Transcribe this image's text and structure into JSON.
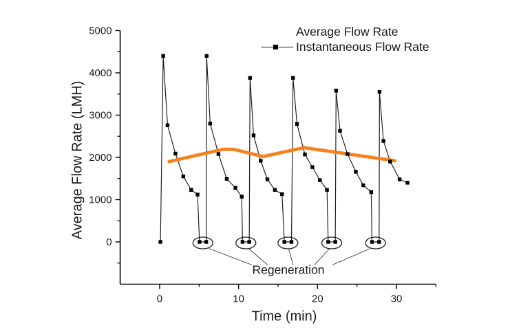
{
  "chart_data": {
    "type": "line",
    "title": "",
    "xlabel": "Time (min)",
    "ylabel": "Average Flow Rate (LMH)",
    "xlim": [
      -5,
      35
    ],
    "ylim": [
      -1000,
      5000
    ],
    "x_major_ticks": [
      0,
      10,
      20,
      30
    ],
    "x_minor_ticks": [
      5,
      15,
      25,
      35
    ],
    "y_major_ticks": [
      0,
      1000,
      2000,
      3000,
      4000,
      5000
    ],
    "y_minor_ticks": [
      -500,
      500,
      1500,
      2500,
      3500,
      4500
    ],
    "grid": false,
    "colors": {
      "average_line": "#F5821F",
      "instantaneous_line": "#1A1A1A",
      "marker": "#000000",
      "axis": "#000000"
    },
    "legend": {
      "position": "top-right-inside",
      "entries": [
        "Average Flow Rate",
        "Instantaneous Flow Rate"
      ]
    },
    "series": [
      {
        "name": "Average Flow Rate",
        "style": "thick-line",
        "color": "#F5821F",
        "points": [
          [
            1.2,
            1900
          ],
          [
            8,
            2190
          ],
          [
            9.4,
            2190
          ],
          [
            13.1,
            2020
          ],
          [
            18.3,
            2230
          ],
          [
            29.8,
            1920
          ]
        ]
      },
      {
        "name": "Instantaneous Flow Rate",
        "style": "line-with-square-markers",
        "color": "#1A1A1A",
        "points": [
          [
            0.1,
            0
          ],
          [
            0.45,
            4400
          ],
          [
            1,
            2760
          ],
          [
            2,
            2090
          ],
          [
            3,
            1550
          ],
          [
            4,
            1230
          ],
          [
            4.8,
            1120
          ],
          [
            5.05,
            0
          ],
          [
            5.9,
            0
          ],
          [
            5.95,
            4400
          ],
          [
            6.4,
            2800
          ],
          [
            7.45,
            2080
          ],
          [
            8.5,
            1490
          ],
          [
            9.6,
            1280
          ],
          [
            10.4,
            1070
          ],
          [
            10.5,
            0
          ],
          [
            11.35,
            0
          ],
          [
            11.45,
            3880
          ],
          [
            11.9,
            2520
          ],
          [
            12.8,
            1920
          ],
          [
            13.65,
            1480
          ],
          [
            14.6,
            1230
          ],
          [
            15.5,
            1130
          ],
          [
            15.8,
            0
          ],
          [
            16.7,
            0
          ],
          [
            16.9,
            3880
          ],
          [
            17.4,
            2790
          ],
          [
            18.4,
            2070
          ],
          [
            19.35,
            1770
          ],
          [
            20.3,
            1460
          ],
          [
            21.2,
            1230
          ],
          [
            21.35,
            0
          ],
          [
            22.25,
            0
          ],
          [
            22.35,
            3580
          ],
          [
            22.85,
            2630
          ],
          [
            23.8,
            2080
          ],
          [
            24.85,
            1660
          ],
          [
            25.8,
            1340
          ],
          [
            26.8,
            1180
          ],
          [
            26.9,
            0
          ],
          [
            27.8,
            0
          ],
          [
            27.85,
            3550
          ],
          [
            28.35,
            2390
          ],
          [
            29.2,
            1900
          ],
          [
            30.4,
            1480
          ],
          [
            31.4,
            1400
          ]
        ]
      }
    ],
    "annotation": {
      "label": "Regeneration",
      "circled_zero_pairs_t": [
        [
          5.05,
          5.9
        ],
        [
          10.5,
          11.35
        ],
        [
          15.8,
          16.7
        ],
        [
          21.35,
          22.25
        ],
        [
          26.9,
          27.8
        ]
      ]
    }
  }
}
